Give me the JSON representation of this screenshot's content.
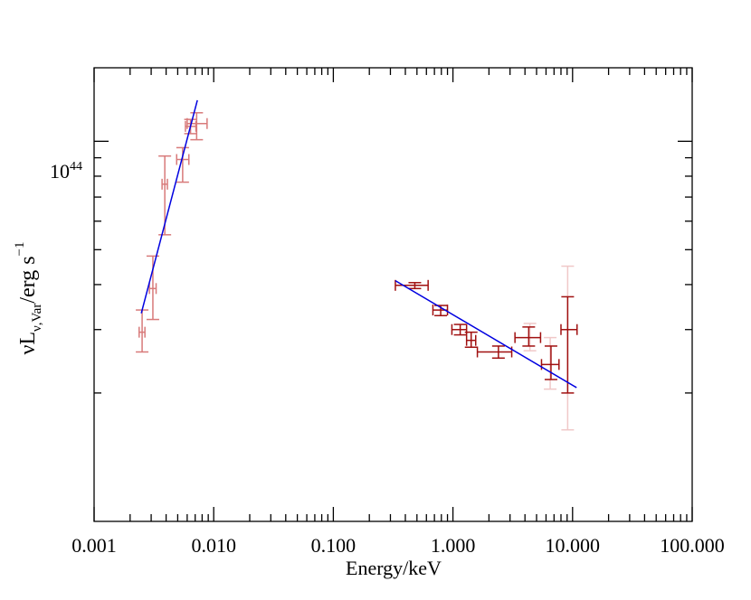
{
  "chart_data": {
    "type": "scatter",
    "title": "",
    "xlabel": "Energy/keV",
    "ylabel_parts": {
      "main": "νL",
      "sub": "ν,Var",
      "unit": "/erg s",
      "exp": "−1"
    },
    "xscale": "log",
    "yscale": "log",
    "xlim": [
      0.001,
      100.0
    ],
    "ylim": [
      8.8e+42,
      1.6e+44
    ],
    "x_ticks": [
      {
        "value": 0.001,
        "label": "0.001"
      },
      {
        "value": 0.01,
        "label": "0.010"
      },
      {
        "value": 0.1,
        "label": "0.100"
      },
      {
        "value": 1.0,
        "label": "1.000"
      },
      {
        "value": 10.0,
        "label": "10.000"
      },
      {
        "value": 100.0,
        "label": "100.000"
      }
    ],
    "y_major_label": {
      "value": 1e+44,
      "base": "10",
      "exp": "44"
    },
    "y_minor_ticks": [
      2e+43,
      3e+43,
      4e+43,
      5e+43,
      6e+43,
      7e+43,
      8e+43,
      9e+43
    ],
    "colors": {
      "uv": "#d87a7a",
      "xray": "#a01010",
      "xray_faint": "#f0c8c8",
      "fit": "#0000e0",
      "axis": "#000000"
    },
    "series": [
      {
        "name": "uv",
        "points": [
          {
            "x": 0.00252,
            "xl": 0.00238,
            "xh": 0.00266,
            "y": 2.95e+43,
            "yl": 2.6e+43,
            "yh": 3.4e+43
          },
          {
            "x": 0.0031,
            "xl": 0.0029,
            "xh": 0.0033,
            "y": 3.9e+43,
            "yl": 3.2e+43,
            "yh": 4.8e+43
          },
          {
            "x": 0.0039,
            "xl": 0.0037,
            "xh": 0.0041,
            "y": 7.6e+43,
            "yl": 5.5e+43,
            "yh": 9.1e+43
          },
          {
            "x": 0.0055,
            "xl": 0.0049,
            "xh": 0.0062,
            "y": 8.9e+43,
            "yl": 7.7e+43,
            "yh": 9.6e+43
          },
          {
            "x": 0.0064,
            "xl": 0.0058,
            "xh": 0.0071,
            "y": 1.1e+44,
            "yl": 1.05e+44,
            "yh": 1.15e+44
          },
          {
            "x": 0.0072,
            "xl": 0.006,
            "xh": 0.0088,
            "y": 1.12e+44,
            "yl": 1.01e+44,
            "yh": 1.2e+44
          }
        ]
      },
      {
        "name": "xray",
        "points": [
          {
            "x": 0.48,
            "xl": 0.33,
            "xh": 0.62,
            "y": 3.98e+43,
            "yl": 3.9e+43,
            "yh": 4.05e+43
          },
          {
            "x": 0.79,
            "xl": 0.68,
            "xh": 0.9,
            "y": 3.4e+43,
            "yl": 3.28e+43,
            "yh": 3.5e+43
          },
          {
            "x": 1.15,
            "xl": 0.98,
            "xh": 1.3,
            "y": 3e+43,
            "yl": 2.9e+43,
            "yh": 3.1e+43
          },
          {
            "x": 1.42,
            "xl": 1.3,
            "xh": 1.55,
            "y": 2.8e+43,
            "yl": 2.68e+43,
            "yh": 2.95e+43
          },
          {
            "x": 2.4,
            "xl": 1.6,
            "xh": 3.1,
            "y": 2.6e+43,
            "yl": 2.5e+43,
            "yh": 2.7e+43
          },
          {
            "x": 4.3,
            "xl": 3.3,
            "xh": 5.4,
            "y": 2.85e+43,
            "yl": 2.7e+43,
            "yh": 3.05e+43
          },
          {
            "x": 6.6,
            "xl": 5.5,
            "xh": 7.7,
            "y": 2.4e+43,
            "yl": 2.18e+43,
            "yh": 2.7e+43
          },
          {
            "x": 9.1,
            "xl": 8.0,
            "xh": 10.9,
            "y": 3e+43,
            "yl": 2e+43,
            "yh": 3.7e+43
          }
        ],
        "faint_errors": [
          {
            "x": 4.4,
            "yl": 2.62e+43,
            "yh": 3.12e+43
          },
          {
            "x": 6.5,
            "yl": 2.05e+43,
            "yh": 2.85e+43
          },
          {
            "x": 9.1,
            "yl": 1.58e+43,
            "yh": 4.5e+43
          }
        ]
      }
    ],
    "fits": [
      {
        "name": "uv-fit",
        "x": [
          0.00248,
          0.0073
        ],
        "y": [
          3.33e+43,
          1.3e+44
        ]
      },
      {
        "name": "xray-fit",
        "x": [
          0.33,
          10.8
        ],
        "y": [
          4.1e+43,
          2.07e+43
        ]
      }
    ]
  }
}
